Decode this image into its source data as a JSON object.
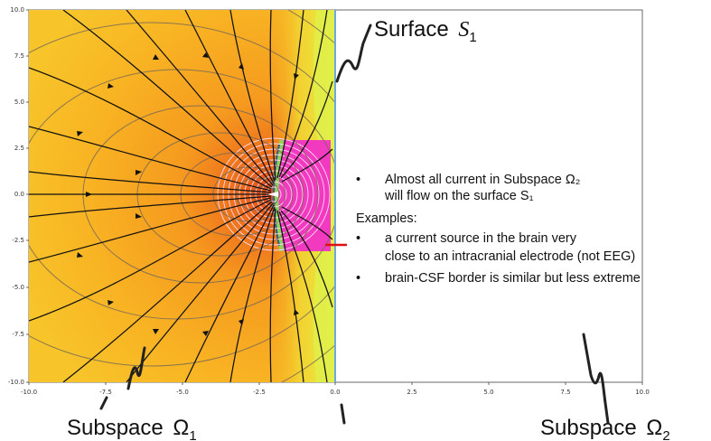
{
  "plot": {
    "x_ticks": [
      "-10.0",
      "-7.5",
      "-5.0",
      "-2.5",
      "0.0",
      "2.5",
      "5.0",
      "7.5",
      "10.0"
    ],
    "y_ticks": [
      "10.0",
      "7.5",
      "5.0",
      "2.5",
      "0.0",
      "-2.5",
      "-5.0",
      "-7.5",
      "-10.0"
    ],
    "colors": {
      "field_warm": "#f7a21b",
      "field_yellow": "#f3e43a",
      "field_hot": "#e9581a",
      "stripe_magenta": "#f13ac0",
      "stripe_green": "#8ed35a",
      "line": "#111111",
      "boundary": "#6fa8dc",
      "electrode": "#e01010"
    }
  },
  "annotations": {
    "surface_top": {
      "label": "Surface",
      "symbol": "S",
      "subscript": "1"
    },
    "subspace_left": {
      "label": "Subspace",
      "symbol": "Ω",
      "subscript": "1"
    },
    "subspace_right": {
      "label": "Subspace",
      "symbol": "Ω",
      "subscript": "2"
    }
  },
  "notes": {
    "b1_line1": "Almost all current in Subspace Ω₂",
    "b1_line2": "will flow on the surface S₁",
    "examples_heading": "Examples:",
    "b2_line1": "a current source in the brain very",
    "b2_line2": "close to an intracranial electrode (not EEG)",
    "b3_line1": "brain-CSF border is similar but less extreme",
    "bullet": "•"
  }
}
